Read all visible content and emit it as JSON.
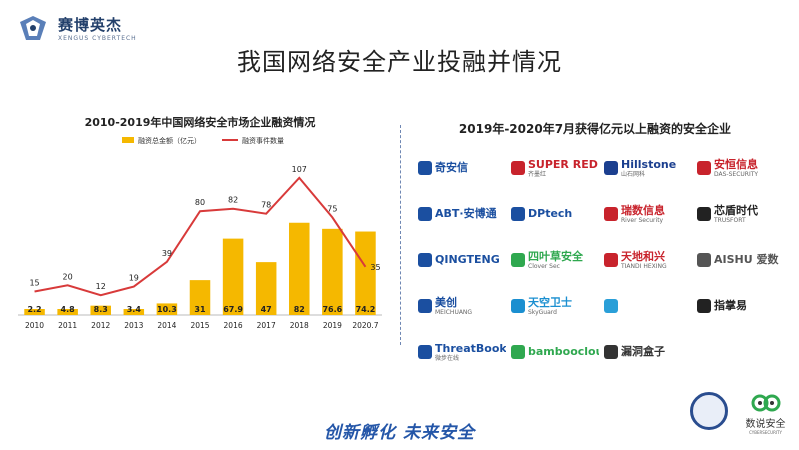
{
  "header": {
    "logo_text": "赛博英杰",
    "logo_sub": "XENGUS CYBERTECH",
    "title": "我国网络安全产业投融并情况"
  },
  "chart_data": {
    "type": "bar",
    "title": "2010-2019年中国网络安全市场企业融资情况",
    "categories": [
      "2010",
      "2011",
      "2012",
      "2013",
      "2014",
      "2015",
      "2016",
      "2017",
      "2018",
      "2019",
      "2020.7"
    ],
    "series": [
      {
        "name": "融资总金额（亿元）",
        "type": "bar",
        "color": "#f5b800",
        "values": [
          2.2,
          4.8,
          8.3,
          3.4,
          10.3,
          31,
          67.9,
          47,
          82,
          76.6,
          74.2
        ],
        "labels": [
          "2.2",
          "4.8",
          "8.3",
          "3.4",
          "10.3",
          "31",
          "67.9",
          "47",
          "82",
          "76.6",
          "74.2"
        ]
      },
      {
        "name": "融资事件数量",
        "type": "line",
        "color": "#d83a3a",
        "values": [
          15,
          20,
          12,
          19,
          39,
          80,
          82,
          78,
          107,
          75,
          35
        ],
        "labels": [
          "15",
          "20",
          "12",
          "19",
          "39",
          "80",
          "82",
          "78",
          "107",
          "75",
          "35"
        ]
      }
    ],
    "legend": "top",
    "grid": false
  },
  "companies_title": "2019年-2020年7月获得亿元以上融资的安全企业",
  "companies": [
    {
      "name": "奇安信",
      "sub": "",
      "color": "#1b4fa0"
    },
    {
      "name": "SUPER RED",
      "sub": "齐墨红",
      "color": "#c8232c"
    },
    {
      "name": "Hillstone",
      "sub": "山石网科",
      "color": "#1b3f8f"
    },
    {
      "name": "安恒信息",
      "sub": "DAS-SECURITY",
      "color": "#c8232c"
    },
    {
      "name": "ABT·安博通",
      "sub": "",
      "color": "#1b4fa0"
    },
    {
      "name": "DPtech",
      "sub": "",
      "color": "#1b4fa0"
    },
    {
      "name": "瑞数信息",
      "sub": "River Security",
      "color": "#c8232c"
    },
    {
      "name": "芯盾时代",
      "sub": "TRUSFORT",
      "color": "#222222"
    },
    {
      "name": "QINGTENG",
      "sub": "",
      "color": "#1b4fa0"
    },
    {
      "name": "四叶草安全",
      "sub": "Clover Sec",
      "color": "#2fa84f"
    },
    {
      "name": "天地和兴",
      "sub": "TIANDI HEXING",
      "color": "#c8232c"
    },
    {
      "name": "AISHU 爱数",
      "sub": "",
      "color": "#555555"
    },
    {
      "name": "美创",
      "sub": "MEICHUANG",
      "color": "#1b4fa0"
    },
    {
      "name": "天空卫士",
      "sub": "SkyGuard",
      "color": "#1b8fd0"
    },
    {
      "name": "",
      "sub": "",
      "color": "#2a9fd8"
    },
    {
      "name": "指掌易",
      "sub": "",
      "color": "#222222"
    },
    {
      "name": "ThreatBook",
      "sub": "微步在线",
      "color": "#1b4fa0"
    },
    {
      "name": "bamboocloud",
      "sub": "",
      "color": "#2fa84f"
    },
    {
      "name": "漏洞盒子",
      "sub": "",
      "color": "#333333"
    }
  ],
  "footer": {
    "slogan": "创新孵化 未来安全",
    "brand2": "数说安全",
    "brand2_sub": "CYBERSECURITY"
  }
}
